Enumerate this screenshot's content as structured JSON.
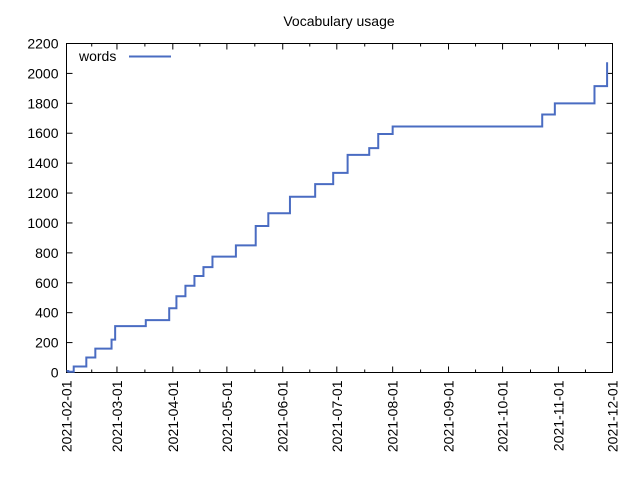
{
  "chart_data": {
    "type": "line",
    "step": true,
    "title": "Vocabulary usage",
    "xlabel": "",
    "ylabel": "",
    "xaxis": {
      "kind": "date",
      "min": "2021-02-01",
      "max": "2021-12-01"
    },
    "x_tick_labels": [
      "2021-02-01",
      "2021-03-01",
      "2021-04-01",
      "2021-05-01",
      "2021-06-01",
      "2021-07-01",
      "2021-08-01",
      "2021-09-01",
      "2021-10-01",
      "2021-11-01",
      "2021-12-01"
    ],
    "ylim": [
      0,
      2200
    ],
    "y_tick_labels": [
      "0",
      "200",
      "400",
      "600",
      "800",
      "1000",
      "1200",
      "1400",
      "1600",
      "1800",
      "2000",
      "2200"
    ],
    "grid": false,
    "legend": {
      "position": "top-left"
    },
    "series": [
      {
        "name": "words",
        "color": "#4a6cc2",
        "x": [
          "2021-02-01",
          "2021-02-02",
          "2021-02-05",
          "2021-02-12",
          "2021-02-17",
          "2021-02-26",
          "2021-02-28",
          "2021-03-17",
          "2021-03-30",
          "2021-04-03",
          "2021-04-08",
          "2021-04-13",
          "2021-04-18",
          "2021-04-23",
          "2021-05-06",
          "2021-05-17",
          "2021-05-24",
          "2021-06-05",
          "2021-06-19",
          "2021-06-29",
          "2021-07-07",
          "2021-07-19",
          "2021-07-24",
          "2021-08-01",
          "2021-08-09",
          "2021-10-23",
          "2021-10-30",
          "2021-11-21",
          "2021-11-28"
        ],
        "y": [
          10,
          5,
          40,
          100,
          160,
          220,
          310,
          350,
          430,
          510,
          580,
          645,
          705,
          775,
          850,
          980,
          1065,
          1175,
          1260,
          1335,
          1455,
          1500,
          1595,
          1645,
          1645,
          1725,
          1800,
          1915,
          2075
        ]
      }
    ]
  }
}
